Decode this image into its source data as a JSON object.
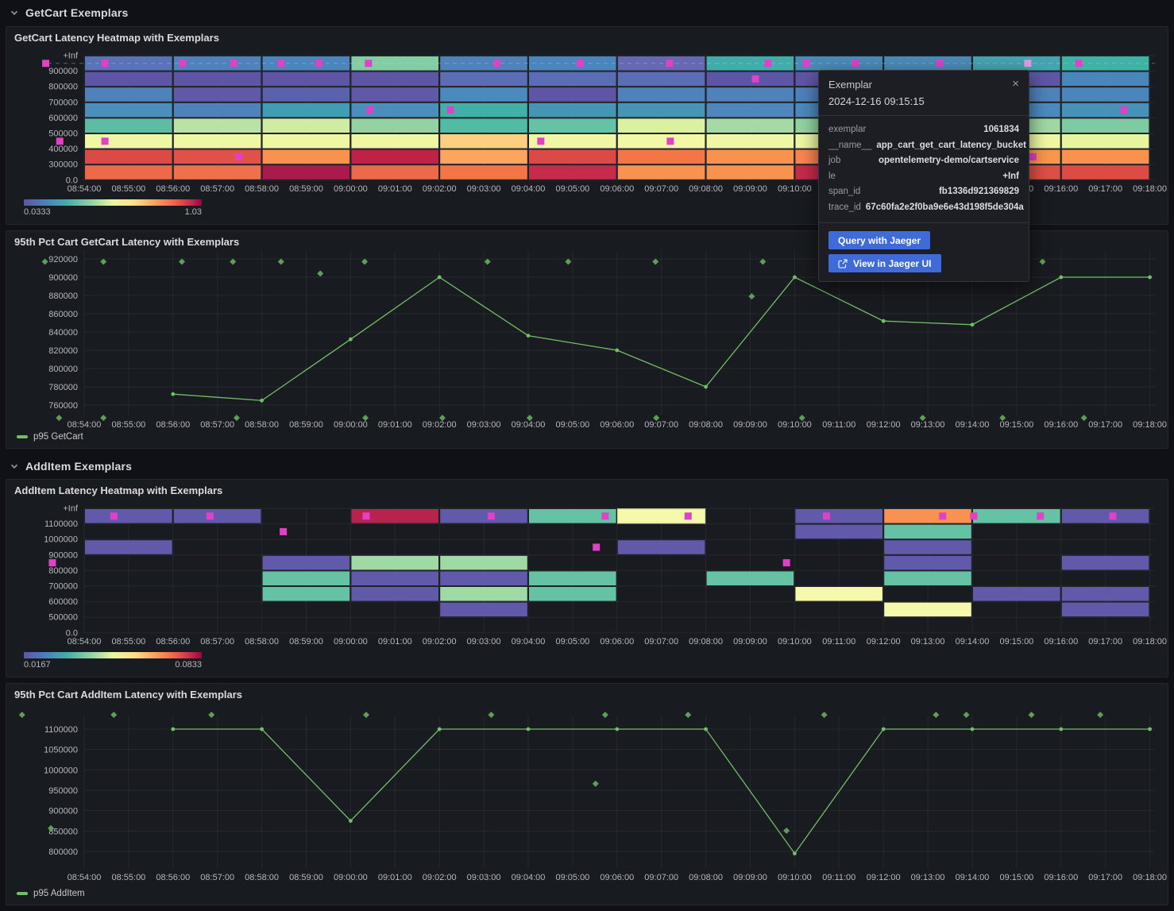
{
  "page": {
    "bg": "#0f1116",
    "panel_bg": "#181b1f",
    "series_green": "#73bf69",
    "exemplar_diamond": "#5f9e58",
    "exemplar_color": "#e240c8",
    "exemplar_highlight": "#e39ae0",
    "button_blue": "#3f6bd9"
  },
  "sections": [
    {
      "label": "GetCart Exemplars"
    },
    {
      "label": "AddItem Exemplars"
    }
  ],
  "x_ticks": [
    "08:54:00",
    "08:55:00",
    "08:56:00",
    "08:57:00",
    "08:58:00",
    "08:59:00",
    "09:00:00",
    "09:01:00",
    "09:02:00",
    "09:03:00",
    "09:04:00",
    "09:05:00",
    "09:06:00",
    "09:07:00",
    "09:08:00",
    "09:09:00",
    "09:10:00",
    "09:11:00",
    "09:12:00",
    "09:13:00",
    "09:14:00",
    "09:15:00",
    "09:16:00",
    "09:17:00",
    "09:18:00"
  ],
  "chart_data": [
    {
      "type": "heatmap",
      "title": "GetCart Latency Heatmap with Exemplars",
      "scale_min": "0.0333",
      "scale_max": "1.03",
      "y_ticks": [
        "+Inf",
        "900000",
        "800000",
        "700000",
        "600000",
        "500000",
        "400000",
        "300000",
        "0.0"
      ],
      "x_starts": [
        "08:54:00",
        "08:56:00",
        "08:58:00",
        "09:00:00",
        "09:02:00",
        "09:04:00",
        "09:06:00",
        "09:08:00",
        "09:10:00",
        "09:12:00",
        "09:14:00",
        "09:16:00"
      ],
      "columns": [
        [
          "#5873b8",
          "#5e55a6",
          "#4f81bb",
          "#4c8fbb",
          "#5cbda3",
          "#eff7a4",
          "#dc4a47",
          "#ec6a4b"
        ],
        [
          "#4f81bb",
          "#5e55a6",
          "#6059a8",
          "#4f81bb",
          "#b9e3a5",
          "#eff7a4",
          "#e05149",
          "#ee704c"
        ],
        [
          "#4a86bd",
          "#5e55a6",
          "#5b61ab",
          "#3f9fb2",
          "#cfeca2",
          "#eff7a4",
          "#f9914f",
          "#aa1a4d"
        ],
        [
          "#82cda4",
          "#5e55a6",
          "#6059a8",
          "#4a8fbb",
          "#93d3a2",
          "#eff7a4",
          "#c02149",
          "#ec6a4b"
        ],
        [
          "#4f81bb",
          "#5b6db4",
          "#4a8abd",
          "#41b0a7",
          "#52bba3",
          "#fdd081",
          "#fca55f",
          "#f47647"
        ],
        [
          "#4a86bd",
          "#5b6db4",
          "#5e55a6",
          "#4596b5",
          "#66c2a5",
          "#eff7a4",
          "#dc4a47",
          "#c62b4b"
        ],
        [
          "#6668b1",
          "#5b6db4",
          "#4f81bb",
          "#4596b5",
          "#daf1a0",
          "#f2f8a6",
          "#f47647",
          "#f9914f"
        ],
        [
          "#41adab",
          "#5e55a6",
          "#4f81bb",
          "#4f86bd",
          "#a5daa4",
          "#eff7a4",
          "#f9914f",
          "#f9914f"
        ],
        [
          "#4a8bb7",
          "#5e55a6",
          "#4f81bb",
          "#4a8abd",
          "#93d3a2",
          "#eff7a4",
          "#f88651",
          "#c62b4b"
        ],
        [
          "#4a8bb7",
          "#5e55a6",
          "#4f81bb",
          "#4a8abd",
          "#a5daa4",
          "#eff7a4",
          "#f88651",
          "#ec6a4b"
        ],
        [
          "#44a4b0",
          "#5e55a6",
          "#4f81bb",
          "#4a8abd",
          "#9ed7a3",
          "#eff7a4",
          "#f8954e",
          "#dc4f45"
        ],
        [
          "#3fb2a6",
          "#4a85bc",
          "#4a85bc",
          "#4692b8",
          "#7ecaa3",
          "#e7f59e",
          "#f9914f",
          "#dd4b44"
        ]
      ],
      "dashed_row": 0,
      "exemplars": [
        {
          "time": "08:53:08",
          "row": 0
        },
        {
          "time": "08:54:28",
          "row": 0
        },
        {
          "time": "08:56:13",
          "row": 0
        },
        {
          "time": "08:57:22",
          "row": 0
        },
        {
          "time": "08:58:26",
          "row": 0
        },
        {
          "time": "08:59:17",
          "row": 0
        },
        {
          "time": "09:00:24",
          "row": 0
        },
        {
          "time": "09:03:18",
          "row": 0
        },
        {
          "time": "09:05:10",
          "row": 0
        },
        {
          "time": "09:07:11",
          "row": 0
        },
        {
          "time": "09:09:24",
          "row": 0
        },
        {
          "time": "09:10:16",
          "row": 0
        },
        {
          "time": "09:11:22",
          "row": 0
        },
        {
          "time": "09:13:16",
          "row": 0
        },
        {
          "time": "09:16:24",
          "row": 0
        },
        {
          "time": "09:09:07",
          "row": 1
        },
        {
          "time": "09:00:26",
          "row": 3
        },
        {
          "time": "09:02:15",
          "row": 3
        },
        {
          "time": "09:17:25",
          "row": 3
        },
        {
          "time": "08:53:27",
          "row": 5
        },
        {
          "time": "08:54:28",
          "row": 5
        },
        {
          "time": "09:04:17",
          "row": 5
        },
        {
          "time": "09:07:12",
          "row": 5
        },
        {
          "time": "08:57:29",
          "row": 6
        },
        {
          "time": "09:15:22",
          "row": 6
        }
      ],
      "highlight": {
        "time": "09:15:15",
        "row": 0
      }
    },
    {
      "type": "line",
      "title": "95th Pct Cart GetCart Latency with Exemplars",
      "series_label": "p95 GetCart",
      "y_ticks": [
        "920000",
        "900000",
        "880000",
        "860000",
        "840000",
        "820000",
        "800000",
        "780000",
        "760000"
      ],
      "x": [
        "08:56:00",
        "08:58:00",
        "09:00:00",
        "09:02:00",
        "09:04:00",
        "09:06:00",
        "09:08:00",
        "09:10:00",
        "09:12:00",
        "09:14:00",
        "09:16:00",
        "09:18:00"
      ],
      "values": [
        772000,
        765000,
        832000,
        900000,
        836000,
        820000,
        780000,
        900000,
        852000,
        848000,
        900000,
        900000
      ],
      "exemplars": [
        {
          "time": "08:53:07",
          "value": 917000
        },
        {
          "time": "08:54:26",
          "value": 917000
        },
        {
          "time": "08:56:12",
          "value": 917000
        },
        {
          "time": "08:57:21",
          "value": 917000
        },
        {
          "time": "08:58:26",
          "value": 917000
        },
        {
          "time": "09:00:19",
          "value": 917000
        },
        {
          "time": "09:03:05",
          "value": 917000
        },
        {
          "time": "09:04:54",
          "value": 917000
        },
        {
          "time": "09:06:52",
          "value": 917000
        },
        {
          "time": "09:09:17",
          "value": 917000
        },
        {
          "time": "09:11:29",
          "value": 917000
        },
        {
          "time": "09:14:32",
          "value": 917000
        },
        {
          "time": "09:15:35",
          "value": 917000
        },
        {
          "time": "08:59:19",
          "value": 904000
        },
        {
          "time": "09:09:02",
          "value": 879000
        },
        {
          "time": "08:53:26",
          "value": 746000
        },
        {
          "time": "08:54:26",
          "value": 746000
        },
        {
          "time": "08:57:26",
          "value": 746000
        },
        {
          "time": "09:00:20",
          "value": 746000
        },
        {
          "time": "09:02:04",
          "value": 746000
        },
        {
          "time": "09:04:02",
          "value": 746000
        },
        {
          "time": "09:06:53",
          "value": 746000
        },
        {
          "time": "09:10:10",
          "value": 746000
        },
        {
          "time": "09:12:53",
          "value": 746000
        },
        {
          "time": "09:14:41",
          "value": 746000
        },
        {
          "time": "09:16:31",
          "value": 746000
        }
      ]
    },
    {
      "type": "heatmap",
      "title": "AddItem Latency Heatmap with Exemplars",
      "scale_min": "0.0167",
      "scale_max": "0.0833",
      "y_ticks": [
        "+Inf",
        "1100000",
        "1000000",
        "900000",
        "800000",
        "700000",
        "600000",
        "500000",
        "0.0"
      ],
      "x_starts": [
        "08:54:00",
        "08:56:00",
        "08:58:00",
        "09:00:00",
        "09:02:00",
        "09:04:00",
        "09:06:00",
        "09:08:00",
        "09:10:00",
        "09:12:00",
        "09:14:00",
        "09:16:00"
      ],
      "columns": [
        [
          "#6159a9",
          null,
          "#6159a9",
          null,
          null,
          null,
          null,
          null
        ],
        [
          "#6159a9",
          null,
          null,
          null,
          null,
          null,
          null,
          null
        ],
        [
          null,
          null,
          null,
          "#6159a9",
          "#66c2a5",
          "#66c2a5",
          null,
          null
        ],
        [
          "#b5244c",
          null,
          null,
          "#a0d9a4",
          "#6159a9",
          "#6159a9",
          null,
          null
        ],
        [
          "#6159a9",
          null,
          null,
          "#a0d9a4",
          "#6159a9",
          "#a0d9a4",
          "#6159a9",
          null
        ],
        [
          "#66c2a5",
          null,
          null,
          null,
          "#66c2a5",
          "#66c2a5",
          null,
          null
        ],
        [
          "#f5f9ab",
          null,
          "#6159a9",
          null,
          null,
          null,
          null,
          null
        ],
        [
          null,
          null,
          null,
          null,
          "#66c2a5",
          null,
          null,
          null
        ],
        [
          "#6159a9",
          "#6159a9",
          null,
          null,
          null,
          "#f5f9ab",
          null,
          null
        ],
        [
          "#f99150",
          "#66c2a5",
          "#6159a9",
          "#6159a9",
          "#66c2a5",
          null,
          "#f5f9ab",
          null
        ],
        [
          "#66c2a5",
          null,
          null,
          null,
          null,
          "#6159a9",
          null,
          null
        ],
        [
          "#6159a9",
          null,
          null,
          "#6159a9",
          null,
          "#6159a9",
          "#6159a9",
          null
        ]
      ],
      "dashed_row": null,
      "outlined_cell": {
        "x": "09:06:00",
        "row": 0,
        "color": "#e4e7a2"
      },
      "exemplars": [
        {
          "time": "08:54:40",
          "row": 0
        },
        {
          "time": "08:56:50",
          "row": 0
        },
        {
          "time": "09:00:21",
          "row": 0
        },
        {
          "time": "09:03:10",
          "row": 0
        },
        {
          "time": "09:05:44",
          "row": 0
        },
        {
          "time": "09:07:36",
          "row": 0
        },
        {
          "time": "09:10:43",
          "row": 0
        },
        {
          "time": "09:13:20",
          "row": 0
        },
        {
          "time": "09:14:02",
          "row": 0
        },
        {
          "time": "09:15:32",
          "row": 0
        },
        {
          "time": "09:17:10",
          "row": 0
        },
        {
          "time": "08:58:29",
          "row": 1
        },
        {
          "time": "09:05:32",
          "row": 2
        },
        {
          "time": "08:53:17",
          "row": 3
        },
        {
          "time": "09:09:49",
          "row": 3
        }
      ],
      "highlight": null
    },
    {
      "type": "line",
      "title": "95th Pct Cart AddItem Latency with Exemplars",
      "series_label": "p95 AddItem",
      "y_ticks": [
        "1100000",
        "1050000",
        "1000000",
        "950000",
        "900000",
        "850000",
        "800000"
      ],
      "x": [
        "08:56:00",
        "08:58:00",
        "09:00:00",
        "09:02:00",
        "09:04:00",
        "09:06:00",
        "09:08:00",
        "09:10:00",
        "09:12:00",
        "09:14:00",
        "09:16:00",
        "09:18:00"
      ],
      "values": [
        1100000,
        1100000,
        875000,
        1100000,
        1100000,
        1100000,
        1100000,
        795000,
        1100000,
        1100000,
        1100000,
        1100000
      ],
      "exemplars": [
        {
          "time": "08:52:36",
          "value": 1135000
        },
        {
          "time": "08:54:40",
          "value": 1135000
        },
        {
          "time": "08:56:52",
          "value": 1135000
        },
        {
          "time": "09:00:21",
          "value": 1135000
        },
        {
          "time": "09:03:10",
          "value": 1135000
        },
        {
          "time": "09:05:44",
          "value": 1135000
        },
        {
          "time": "09:07:36",
          "value": 1135000
        },
        {
          "time": "09:10:40",
          "value": 1135000
        },
        {
          "time": "09:13:11",
          "value": 1135000
        },
        {
          "time": "09:13:52",
          "value": 1135000
        },
        {
          "time": "09:15:20",
          "value": 1135000
        },
        {
          "time": "09:16:53",
          "value": 1135000
        },
        {
          "time": "09:05:31",
          "value": 966000
        },
        {
          "time": "08:53:15",
          "value": 857000
        },
        {
          "time": "09:09:49",
          "value": 851000
        }
      ]
    }
  ],
  "tooltip": {
    "title": "Exemplar",
    "close_label": "×",
    "timestamp": "2024-12-16 09:15:15",
    "fields": [
      {
        "key": "exemplar",
        "value": "1061834"
      },
      {
        "key": "__name__",
        "value": "app_cart_get_cart_latency_bucket"
      },
      {
        "key": "job",
        "value": "opentelemetry-demo/cartservice"
      },
      {
        "key": "le",
        "value": "+Inf"
      },
      {
        "key": "span_id",
        "value": "fb1336d921369829"
      },
      {
        "key": "trace_id",
        "value": "67c60fa2e2f0ba9e6e43d198f5de304a"
      }
    ],
    "buttons": [
      {
        "label": "Query with Jaeger",
        "icon": null
      },
      {
        "label": "View in Jaeger UI",
        "icon": "external-link"
      }
    ]
  }
}
